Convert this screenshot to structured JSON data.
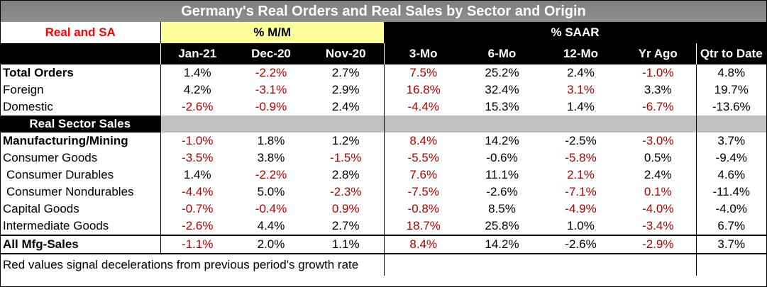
{
  "title": "Germany's Real Orders and Real Sales by Sector and Origin",
  "header": {
    "real_sa": "Real and SA",
    "mm_group": "% M/M",
    "saar_group": "% SAAR",
    "columns": [
      "Jan-21",
      "Dec-20",
      "Nov-20",
      "3-Mo",
      "6-Mo",
      "12-Mo",
      "Yr Ago",
      "Qtr to Date"
    ]
  },
  "section_orders": {
    "rows": [
      {
        "label": "Total Orders",
        "bold": true,
        "values": [
          "1.4%",
          "-2.2%",
          "2.7%",
          "7.5%",
          "25.2%",
          "2.4%",
          "-1.0%",
          "4.8%"
        ],
        "red": [
          false,
          true,
          false,
          true,
          false,
          false,
          true,
          false
        ]
      },
      {
        "label": "Foreign",
        "bold": false,
        "values": [
          "4.2%",
          "-3.1%",
          "2.9%",
          "16.8%",
          "32.4%",
          "3.1%",
          "3.3%",
          "19.7%"
        ],
        "red": [
          false,
          true,
          false,
          true,
          false,
          true,
          false,
          false
        ]
      },
      {
        "label": "Domestic",
        "bold": false,
        "values": [
          "-2.6%",
          "-0.9%",
          "2.4%",
          "-4.4%",
          "15.3%",
          "1.4%",
          "-6.7%",
          "-13.6%"
        ],
        "red": [
          true,
          true,
          false,
          true,
          false,
          false,
          true,
          false
        ]
      }
    ]
  },
  "section_sales": {
    "label": "Real Sector Sales",
    "rows": [
      {
        "label": "Manufacturing/Mining",
        "bold": true,
        "values": [
          "-1.0%",
          "1.8%",
          "1.2%",
          "8.4%",
          "14.2%",
          "-2.5%",
          "-3.0%",
          "3.7%"
        ],
        "red": [
          true,
          false,
          false,
          true,
          false,
          false,
          true,
          false
        ]
      },
      {
        "label": "Consumer Goods",
        "bold": false,
        "values": [
          "-3.5%",
          "3.8%",
          "-1.5%",
          "-5.5%",
          "-0.6%",
          "-5.8%",
          "0.5%",
          "-9.4%"
        ],
        "red": [
          true,
          false,
          true,
          true,
          false,
          true,
          false,
          false
        ]
      },
      {
        "label": " Consumer Durables",
        "bold": false,
        "values": [
          "1.4%",
          "-2.2%",
          "2.8%",
          "7.6%",
          "11.1%",
          "2.1%",
          "2.4%",
          "4.6%"
        ],
        "red": [
          false,
          true,
          false,
          true,
          false,
          true,
          false,
          false
        ]
      },
      {
        "label": " Consumer Nondurables",
        "bold": false,
        "values": [
          "-4.4%",
          "5.0%",
          "-2.3%",
          "-7.5%",
          "-2.6%",
          "-7.1%",
          "0.1%",
          "-11.4%"
        ],
        "red": [
          true,
          false,
          true,
          true,
          false,
          true,
          true,
          false
        ]
      },
      {
        "label": "Capital Goods",
        "bold": false,
        "values": [
          "-0.7%",
          "-0.4%",
          "0.9%",
          "-0.8%",
          "8.5%",
          "-4.9%",
          "-4.0%",
          "-4.0%"
        ],
        "red": [
          true,
          true,
          true,
          true,
          false,
          true,
          true,
          false
        ]
      },
      {
        "label": "Intermediate Goods",
        "bold": false,
        "values": [
          "-2.6%",
          "4.4%",
          "2.7%",
          "18.7%",
          "25.8%",
          "1.0%",
          "-3.4%",
          "6.7%"
        ],
        "red": [
          true,
          false,
          false,
          true,
          false,
          false,
          true,
          false
        ]
      }
    ]
  },
  "total_row": {
    "label": "All Mfg-Sales",
    "values": [
      "-1.1%",
      "2.0%",
      "1.1%",
      "8.4%",
      "14.2%",
      "-2.6%",
      "-2.9%",
      "3.7%"
    ],
    "red": [
      true,
      false,
      false,
      true,
      false,
      false,
      true,
      false
    ]
  },
  "footnote": "Red values signal decelerations from previous period's growth rate",
  "colors": {
    "red_text": "#b00000",
    "header_yellow": "#ffff99",
    "title_grey": "#8e8e8e",
    "section_grey": "#c0c0c0"
  }
}
